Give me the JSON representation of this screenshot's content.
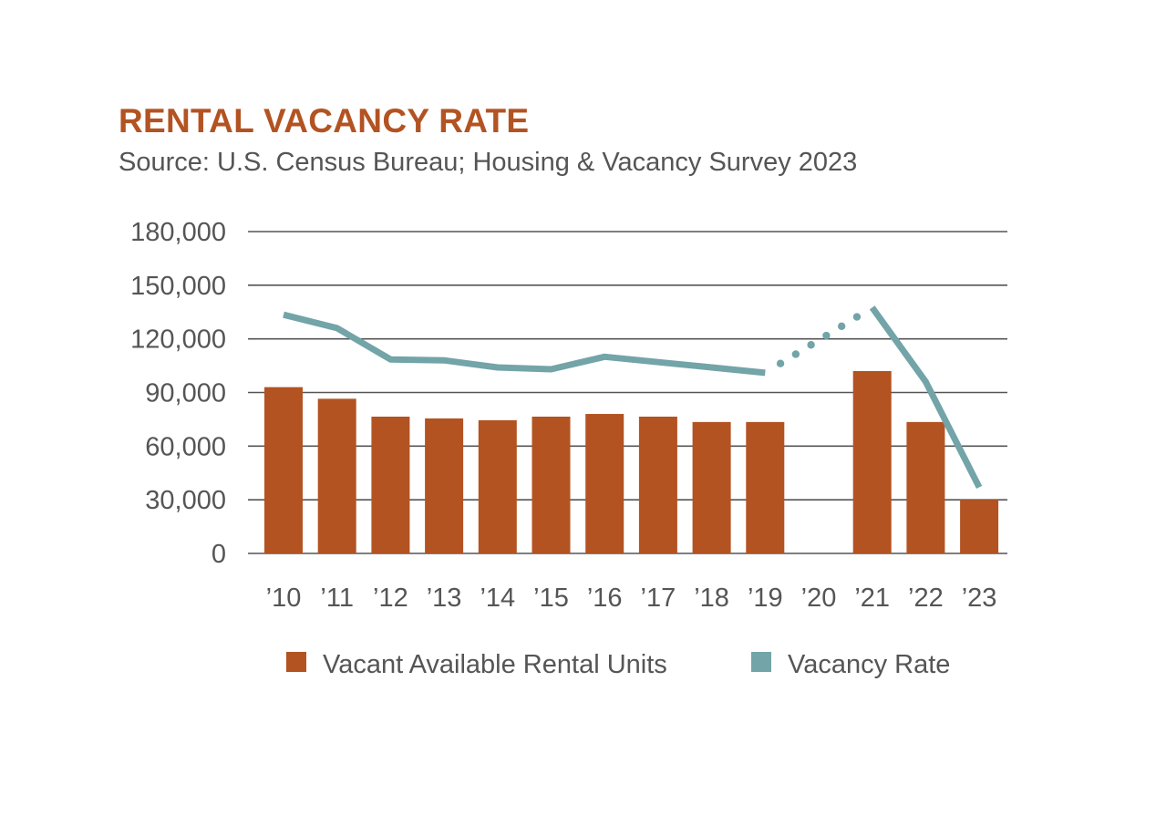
{
  "colors": {
    "bar": "#B35322",
    "line": "#72A4A8",
    "grid": "#555555",
    "title": "#B35322",
    "text": "#555555"
  },
  "chart_data": {
    "type": "bar",
    "title": "RENTAL VACANCY RATE",
    "subtitle": "Source: U.S. Census Bureau; Housing & Vacancy Survey 2023",
    "categories": [
      "’10",
      "’11",
      "’12",
      "’13",
      "’14",
      "’15",
      "’16",
      "’17",
      "’18",
      "’19",
      "’20",
      "’21",
      "’22",
      "’23"
    ],
    "ylim": [
      0,
      180000
    ],
    "yticks": [
      0,
      30000,
      60000,
      90000,
      120000,
      150000,
      180000
    ],
    "ytick_labels": [
      "0",
      "30,000",
      "60,000",
      "90,000",
      "120,000",
      "150,000",
      "180,000"
    ],
    "grid": true,
    "legend_position": "bottom",
    "series": [
      {
        "name": "Vacant Available Rental Units",
        "type": "bar",
        "values": [
          93000,
          86500,
          76500,
          75500,
          74500,
          76500,
          78000,
          76500,
          73500,
          73500,
          null,
          102000,
          73500,
          30000
        ]
      },
      {
        "name": "Vacancy Rate",
        "type": "line",
        "values": [
          133500,
          126000,
          108500,
          108000,
          104000,
          103000,
          110000,
          107000,
          104000,
          101000,
          null,
          137500,
          96000,
          37000
        ],
        "dotted_segment": [
          "’19",
          "’21"
        ]
      }
    ]
  }
}
